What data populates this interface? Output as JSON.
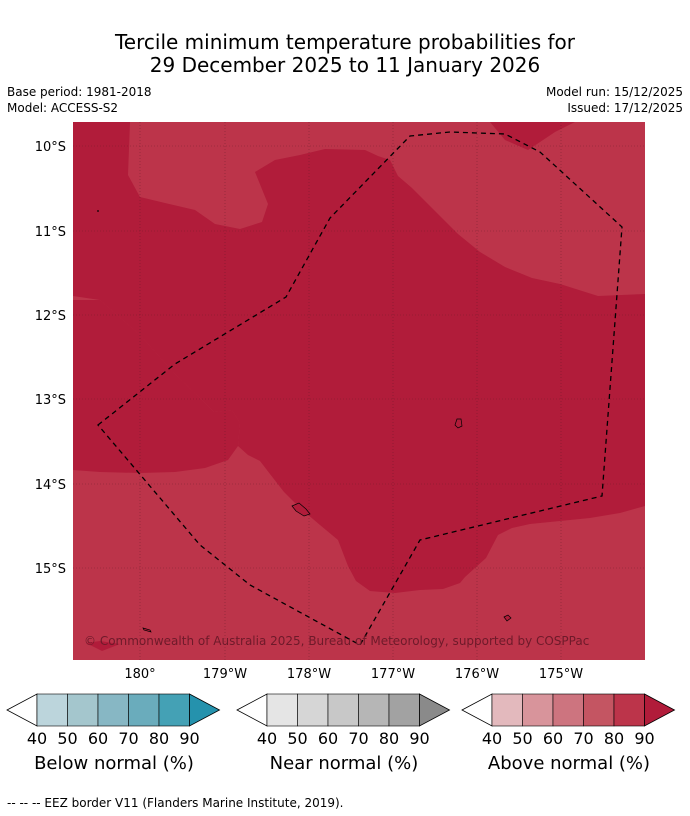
{
  "title_line1": "Tercile minimum temperature probabilities for",
  "title_line2": "29 December 2025 to 11 January 2026",
  "base_period": "Base period: 1981-2018",
  "model": "Model: ACCESS-S2",
  "model_run": "Model run: 15/12/2025",
  "issued": "Issued: 17/12/2025",
  "map": {
    "lat_labels": [
      "10°S",
      "11°S",
      "12°S",
      "13°S",
      "14°S",
      "15°S"
    ],
    "lon_labels": [
      "180°",
      "179°W",
      "178°W",
      "177°W",
      "176°W",
      "175°W"
    ],
    "copyright": "© Commonwealth of Australia 2025, Bureau of Meteorology, supported by COSPPac",
    "colors": {
      "above_80": "#bc344a",
      "above_90": "#b11c3a",
      "grid": "#5a1a26"
    }
  },
  "colorbars": [
    {
      "name": "below",
      "label": "Below normal (%)",
      "ticks": [
        "40",
        "50",
        "60",
        "70",
        "80",
        "90"
      ],
      "colors": [
        "#bcd5dc",
        "#a4c6cd",
        "#87b7c4",
        "#6aacbc",
        "#44a1b5",
        "#2592ad"
      ]
    },
    {
      "name": "near",
      "label": "Near normal (%)",
      "ticks": [
        "40",
        "50",
        "60",
        "70",
        "80",
        "90"
      ],
      "colors": [
        "#e5e5e5",
        "#d6d6d6",
        "#c8c8c8",
        "#b6b6b6",
        "#a2a2a2",
        "#8a8a8a"
      ]
    },
    {
      "name": "above",
      "label": "Above normal (%)",
      "ticks": [
        "40",
        "50",
        "60",
        "70",
        "80",
        "90"
      ],
      "colors": [
        "#e3b9bd",
        "#d8949b",
        "#cd747f",
        "#c45562",
        "#bc344a",
        "#b11c3a"
      ]
    }
  ],
  "footer": "--  --  -- EEZ border V11 (Flanders Marine Institute, 2019)."
}
